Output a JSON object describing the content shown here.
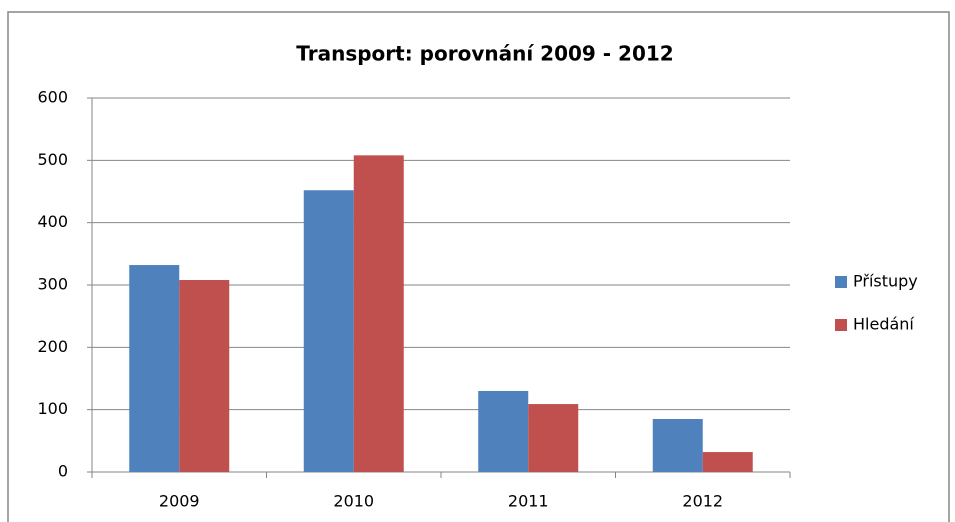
{
  "chart_data": {
    "type": "bar",
    "title": "Transport: porovnání 2009 - 2012",
    "categories": [
      "2009",
      "2010",
      "2011",
      "2012"
    ],
    "series": [
      {
        "name": "Přístupy",
        "color": "#4f81bd",
        "values": [
          332,
          452,
          130,
          85
        ]
      },
      {
        "name": "Hledání",
        "color": "#c0504d",
        "values": [
          308,
          508,
          109,
          32
        ]
      }
    ],
    "ylim": [
      0,
      600
    ],
    "yticks": [
      0,
      100,
      200,
      300,
      400,
      500,
      600
    ],
    "grid": true,
    "legend": "right"
  }
}
